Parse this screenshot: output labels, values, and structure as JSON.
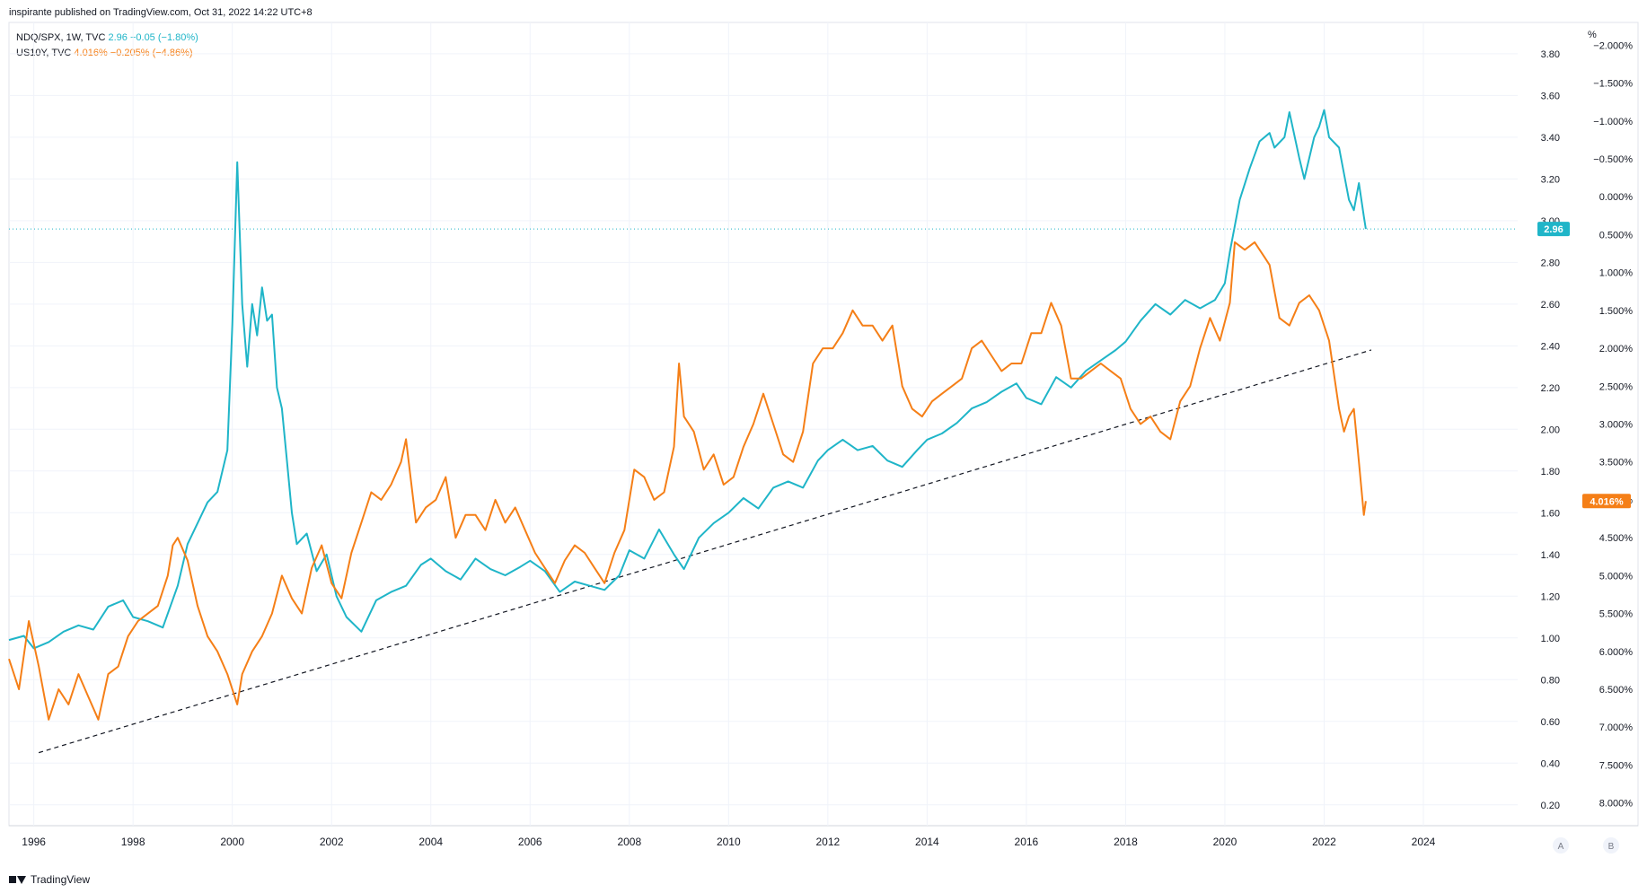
{
  "header": {
    "text": "inspirante published on TradingView.com, Oct 31, 2022 14:22 UTC+8"
  },
  "legend": {
    "s1_symbol": "NDQ/SPX, 1W, TVC",
    "s1_values": "2.96  −0.05 (−1.80%)",
    "s2_symbol": "US10Y, TVC",
    "s2_values": "4.016%  −0.205% (−4.86%)"
  },
  "footer": {
    "brand": "TradingView"
  },
  "colors": {
    "ratio": "#1fb5c8",
    "yield": "#f57f17",
    "grid": "#f0f3fa",
    "trend": "#131722"
  },
  "scale_buttons": [
    "A",
    "B"
  ],
  "chart_data": {
    "type": "line",
    "x_ticks": [
      "1996",
      "1998",
      "2000",
      "2002",
      "2004",
      "2006",
      "2008",
      "2010",
      "2012",
      "2014",
      "2016",
      "2018",
      "2020",
      "2022",
      "2024"
    ],
    "xlim": [
      1995.5,
      2025.9
    ],
    "y_left": {
      "unit": "",
      "ticks": [
        "0.20",
        "0.40",
        "0.60",
        "0.80",
        "1.00",
        "1.20",
        "1.40",
        "1.60",
        "1.80",
        "2.00",
        "2.20",
        "2.40",
        "2.60",
        "2.80",
        "3.00",
        "3.20",
        "3.40",
        "3.60",
        "3.80"
      ],
      "ylim": [
        0.1,
        3.95
      ]
    },
    "y_right": {
      "unit": "%",
      "inverted": true,
      "ticks": [
        "−2.000%",
        "−1.500%",
        "−1.000%",
        "−0.500%",
        "0.000%",
        "0.500%",
        "1.000%",
        "1.500%",
        "2.000%",
        "2.500%",
        "3.000%",
        "3.500%",
        "4.000%",
        "4.500%",
        "5.000%",
        "5.500%",
        "6.000%",
        "6.500%",
        "7.000%",
        "7.500%",
        "8.000%"
      ],
      "ylim": [
        -2.3,
        8.3
      ]
    },
    "series": [
      {
        "name": "NDQ/SPX",
        "axis": "left",
        "last_label": "2.96",
        "points": [
          [
            1995.5,
            0.99
          ],
          [
            1995.8,
            1.01
          ],
          [
            1996.0,
            0.95
          ],
          [
            1996.3,
            0.98
          ],
          [
            1996.6,
            1.03
          ],
          [
            1996.9,
            1.06
          ],
          [
            1997.2,
            1.04
          ],
          [
            1997.5,
            1.15
          ],
          [
            1997.8,
            1.18
          ],
          [
            1998.0,
            1.1
          ],
          [
            1998.3,
            1.08
          ],
          [
            1998.6,
            1.05
          ],
          [
            1998.9,
            1.25
          ],
          [
            1999.1,
            1.45
          ],
          [
            1999.3,
            1.55
          ],
          [
            1999.5,
            1.65
          ],
          [
            1999.7,
            1.7
          ],
          [
            1999.9,
            1.9
          ],
          [
            2000.0,
            2.5
          ],
          [
            2000.1,
            3.28
          ],
          [
            2000.2,
            2.6
          ],
          [
            2000.3,
            2.3
          ],
          [
            2000.4,
            2.6
          ],
          [
            2000.5,
            2.45
          ],
          [
            2000.6,
            2.68
          ],
          [
            2000.7,
            2.52
          ],
          [
            2000.8,
            2.55
          ],
          [
            2000.9,
            2.2
          ],
          [
            2001.0,
            2.1
          ],
          [
            2001.1,
            1.85
          ],
          [
            2001.2,
            1.6
          ],
          [
            2001.3,
            1.45
          ],
          [
            2001.5,
            1.5
          ],
          [
            2001.7,
            1.32
          ],
          [
            2001.9,
            1.4
          ],
          [
            2002.1,
            1.2
          ],
          [
            2002.3,
            1.1
          ],
          [
            2002.6,
            1.03
          ],
          [
            2002.9,
            1.18
          ],
          [
            2003.2,
            1.22
          ],
          [
            2003.5,
            1.25
          ],
          [
            2003.8,
            1.35
          ],
          [
            2004.0,
            1.38
          ],
          [
            2004.3,
            1.32
          ],
          [
            2004.6,
            1.28
          ],
          [
            2004.9,
            1.38
          ],
          [
            2005.2,
            1.33
          ],
          [
            2005.5,
            1.3
          ],
          [
            2005.8,
            1.34
          ],
          [
            2006.0,
            1.37
          ],
          [
            2006.3,
            1.32
          ],
          [
            2006.6,
            1.22
          ],
          [
            2006.9,
            1.27
          ],
          [
            2007.2,
            1.25
          ],
          [
            2007.5,
            1.23
          ],
          [
            2007.8,
            1.3
          ],
          [
            2008.0,
            1.42
          ],
          [
            2008.3,
            1.38
          ],
          [
            2008.6,
            1.52
          ],
          [
            2008.9,
            1.4
          ],
          [
            2009.1,
            1.33
          ],
          [
            2009.4,
            1.48
          ],
          [
            2009.7,
            1.55
          ],
          [
            2010.0,
            1.6
          ],
          [
            2010.3,
            1.67
          ],
          [
            2010.6,
            1.62
          ],
          [
            2010.9,
            1.72
          ],
          [
            2011.2,
            1.75
          ],
          [
            2011.5,
            1.72
          ],
          [
            2011.8,
            1.85
          ],
          [
            2012.0,
            1.9
          ],
          [
            2012.3,
            1.95
          ],
          [
            2012.6,
            1.9
          ],
          [
            2012.9,
            1.92
          ],
          [
            2013.2,
            1.85
          ],
          [
            2013.5,
            1.82
          ],
          [
            2013.8,
            1.9
          ],
          [
            2014.0,
            1.95
          ],
          [
            2014.3,
            1.98
          ],
          [
            2014.6,
            2.03
          ],
          [
            2014.9,
            2.1
          ],
          [
            2015.2,
            2.13
          ],
          [
            2015.5,
            2.18
          ],
          [
            2015.8,
            2.22
          ],
          [
            2016.0,
            2.15
          ],
          [
            2016.3,
            2.12
          ],
          [
            2016.6,
            2.25
          ],
          [
            2016.9,
            2.2
          ],
          [
            2017.2,
            2.28
          ],
          [
            2017.5,
            2.33
          ],
          [
            2017.8,
            2.38
          ],
          [
            2018.0,
            2.42
          ],
          [
            2018.3,
            2.52
          ],
          [
            2018.6,
            2.6
          ],
          [
            2018.9,
            2.55
          ],
          [
            2019.2,
            2.62
          ],
          [
            2019.5,
            2.58
          ],
          [
            2019.8,
            2.62
          ],
          [
            2020.0,
            2.7
          ],
          [
            2020.1,
            2.85
          ],
          [
            2020.3,
            3.1
          ],
          [
            2020.5,
            3.25
          ],
          [
            2020.7,
            3.38
          ],
          [
            2020.9,
            3.42
          ],
          [
            2021.0,
            3.35
          ],
          [
            2021.2,
            3.4
          ],
          [
            2021.3,
            3.52
          ],
          [
            2021.5,
            3.3
          ],
          [
            2021.6,
            3.2
          ],
          [
            2021.8,
            3.4
          ],
          [
            2021.9,
            3.45
          ],
          [
            2022.0,
            3.53
          ],
          [
            2022.1,
            3.4
          ],
          [
            2022.3,
            3.35
          ],
          [
            2022.5,
            3.1
          ],
          [
            2022.6,
            3.05
          ],
          [
            2022.7,
            3.18
          ],
          [
            2022.8,
            3.02
          ],
          [
            2022.84,
            2.96
          ]
        ]
      },
      {
        "name": "US10Y",
        "axis": "right",
        "last_label": "4.016%",
        "points": [
          [
            1995.5,
            6.1
          ],
          [
            1995.7,
            6.5
          ],
          [
            1995.9,
            5.6
          ],
          [
            1996.1,
            6.2
          ],
          [
            1996.3,
            6.9
          ],
          [
            1996.5,
            6.5
          ],
          [
            1996.7,
            6.7
          ],
          [
            1996.9,
            6.3
          ],
          [
            1997.1,
            6.6
          ],
          [
            1997.3,
            6.9
          ],
          [
            1997.5,
            6.3
          ],
          [
            1997.7,
            6.2
          ],
          [
            1997.9,
            5.8
          ],
          [
            1998.1,
            5.6
          ],
          [
            1998.3,
            5.5
          ],
          [
            1998.5,
            5.4
          ],
          [
            1998.7,
            5.0
          ],
          [
            1998.8,
            4.6
          ],
          [
            1998.9,
            4.5
          ],
          [
            1999.1,
            4.8
          ],
          [
            1999.3,
            5.4
          ],
          [
            1999.5,
            5.8
          ],
          [
            1999.7,
            6.0
          ],
          [
            1999.9,
            6.3
          ],
          [
            2000.1,
            6.7
          ],
          [
            2000.2,
            6.3
          ],
          [
            2000.4,
            6.0
          ],
          [
            2000.6,
            5.8
          ],
          [
            2000.8,
            5.5
          ],
          [
            2001.0,
            5.0
          ],
          [
            2001.2,
            5.3
          ],
          [
            2001.4,
            5.5
          ],
          [
            2001.6,
            4.9
          ],
          [
            2001.8,
            4.6
          ],
          [
            2002.0,
            5.1
          ],
          [
            2002.2,
            5.3
          ],
          [
            2002.4,
            4.7
          ],
          [
            2002.6,
            4.3
          ],
          [
            2002.8,
            3.9
          ],
          [
            2003.0,
            4.0
          ],
          [
            2003.2,
            3.8
          ],
          [
            2003.4,
            3.5
          ],
          [
            2003.5,
            3.2
          ],
          [
            2003.7,
            4.3
          ],
          [
            2003.9,
            4.1
          ],
          [
            2004.1,
            4.0
          ],
          [
            2004.3,
            3.7
          ],
          [
            2004.5,
            4.5
          ],
          [
            2004.7,
            4.2
          ],
          [
            2004.9,
            4.2
          ],
          [
            2005.1,
            4.4
          ],
          [
            2005.3,
            4.0
          ],
          [
            2005.5,
            4.3
          ],
          [
            2005.7,
            4.1
          ],
          [
            2005.9,
            4.4
          ],
          [
            2006.1,
            4.7
          ],
          [
            2006.3,
            4.9
          ],
          [
            2006.5,
            5.1
          ],
          [
            2006.7,
            4.8
          ],
          [
            2006.9,
            4.6
          ],
          [
            2007.1,
            4.7
          ],
          [
            2007.3,
            4.9
          ],
          [
            2007.5,
            5.1
          ],
          [
            2007.7,
            4.7
          ],
          [
            2007.9,
            4.4
          ],
          [
            2008.1,
            3.6
          ],
          [
            2008.3,
            3.7
          ],
          [
            2008.5,
            4.0
          ],
          [
            2008.7,
            3.9
          ],
          [
            2008.9,
            3.3
          ],
          [
            2009.0,
            2.2
          ],
          [
            2009.1,
            2.9
          ],
          [
            2009.3,
            3.1
          ],
          [
            2009.5,
            3.6
          ],
          [
            2009.7,
            3.4
          ],
          [
            2009.9,
            3.8
          ],
          [
            2010.1,
            3.7
          ],
          [
            2010.3,
            3.3
          ],
          [
            2010.5,
            3.0
          ],
          [
            2010.7,
            2.6
          ],
          [
            2010.9,
            3.0
          ],
          [
            2011.1,
            3.4
          ],
          [
            2011.3,
            3.5
          ],
          [
            2011.5,
            3.1
          ],
          [
            2011.7,
            2.2
          ],
          [
            2011.9,
            2.0
          ],
          [
            2012.1,
            2.0
          ],
          [
            2012.3,
            1.8
          ],
          [
            2012.5,
            1.5
          ],
          [
            2012.7,
            1.7
          ],
          [
            2012.9,
            1.7
          ],
          [
            2013.1,
            1.9
          ],
          [
            2013.3,
            1.7
          ],
          [
            2013.5,
            2.5
          ],
          [
            2013.7,
            2.8
          ],
          [
            2013.9,
            2.9
          ],
          [
            2014.1,
            2.7
          ],
          [
            2014.3,
            2.6
          ],
          [
            2014.5,
            2.5
          ],
          [
            2014.7,
            2.4
          ],
          [
            2014.9,
            2.0
          ],
          [
            2015.1,
            1.9
          ],
          [
            2015.3,
            2.1
          ],
          [
            2015.5,
            2.3
          ],
          [
            2015.7,
            2.2
          ],
          [
            2015.9,
            2.2
          ],
          [
            2016.1,
            1.8
          ],
          [
            2016.3,
            1.8
          ],
          [
            2016.5,
            1.4
          ],
          [
            2016.7,
            1.7
          ],
          [
            2016.9,
            2.4
          ],
          [
            2017.1,
            2.4
          ],
          [
            2017.3,
            2.3
          ],
          [
            2017.5,
            2.2
          ],
          [
            2017.7,
            2.3
          ],
          [
            2017.9,
            2.4
          ],
          [
            2018.1,
            2.8
          ],
          [
            2018.3,
            3.0
          ],
          [
            2018.5,
            2.9
          ],
          [
            2018.7,
            3.1
          ],
          [
            2018.9,
            3.2
          ],
          [
            2019.1,
            2.7
          ],
          [
            2019.3,
            2.5
          ],
          [
            2019.5,
            2.0
          ],
          [
            2019.7,
            1.6
          ],
          [
            2019.9,
            1.9
          ],
          [
            2020.1,
            1.4
          ],
          [
            2020.2,
            0.6
          ],
          [
            2020.4,
            0.7
          ],
          [
            2020.6,
            0.6
          ],
          [
            2020.8,
            0.8
          ],
          [
            2020.9,
            0.9
          ],
          [
            2021.1,
            1.6
          ],
          [
            2021.3,
            1.7
          ],
          [
            2021.5,
            1.4
          ],
          [
            2021.7,
            1.3
          ],
          [
            2021.9,
            1.5
          ],
          [
            2022.1,
            1.9
          ],
          [
            2022.3,
            2.8
          ],
          [
            2022.4,
            3.1
          ],
          [
            2022.5,
            2.9
          ],
          [
            2022.6,
            2.8
          ],
          [
            2022.7,
            3.5
          ],
          [
            2022.8,
            4.2
          ],
          [
            2022.84,
            4.016
          ]
        ]
      }
    ],
    "trendline": {
      "from": [
        1996.1,
        0.45
      ],
      "to": [
        2022.95,
        2.38
      ],
      "axis": "left",
      "style": "dashed"
    },
    "grid": true,
    "legend_position": "top-left"
  }
}
